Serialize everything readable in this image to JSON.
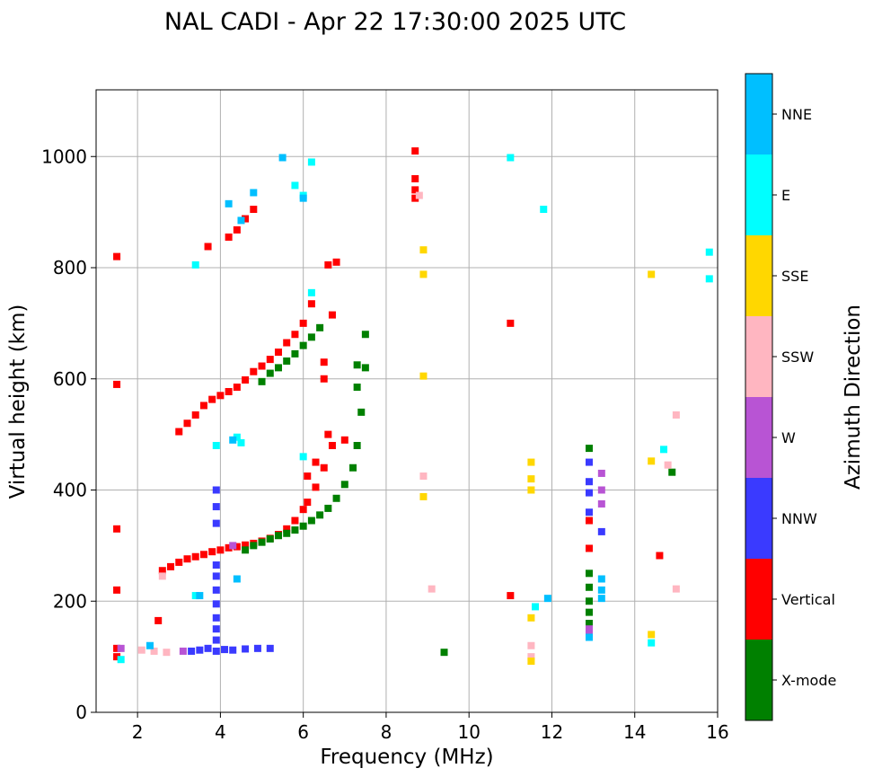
{
  "chart_data": {
    "type": "scatter",
    "title": "NAL CADI - Apr 22 17:30:00 2025 UTC",
    "xlabel": "Frequency (MHz)",
    "ylabel": "Virtual height (km)",
    "xlim": [
      1,
      16
    ],
    "ylim": [
      0,
      1120
    ],
    "xticks": [
      2,
      4,
      6,
      8,
      10,
      12,
      14,
      16
    ],
    "yticks": [
      0,
      200,
      400,
      600,
      800,
      1000
    ],
    "grid": true,
    "colorbar": {
      "label": "Azimuth Direction",
      "categories": [
        {
          "name": "X-mode",
          "color": "#008000"
        },
        {
          "name": "Vertical",
          "color": "#ff0000"
        },
        {
          "name": "NNW",
          "color": "#3a3aff"
        },
        {
          "name": "W",
          "color": "#b854d4"
        },
        {
          "name": "SSW",
          "color": "#ffb6c1"
        },
        {
          "name": "SSE",
          "color": "#ffd700"
        },
        {
          "name": "E",
          "color": "#00ffff"
        },
        {
          "name": "NNE",
          "color": "#00bfff"
        }
      ]
    },
    "series": [
      {
        "name": "Vertical",
        "points": [
          [
            2.6,
            255
          ],
          [
            2.8,
            262
          ],
          [
            3.0,
            270
          ],
          [
            3.2,
            276
          ],
          [
            3.4,
            280
          ],
          [
            3.6,
            284
          ],
          [
            3.8,
            289
          ],
          [
            4.0,
            292
          ],
          [
            4.2,
            296
          ],
          [
            4.4,
            298
          ],
          [
            4.6,
            301
          ],
          [
            4.8,
            304
          ],
          [
            5.0,
            308
          ],
          [
            5.2,
            313
          ],
          [
            5.4,
            320
          ],
          [
            5.6,
            330
          ],
          [
            5.8,
            345
          ],
          [
            6.0,
            365
          ],
          [
            6.1,
            378
          ],
          [
            6.3,
            405
          ],
          [
            6.5,
            440
          ],
          [
            3.0,
            505
          ],
          [
            3.2,
            520
          ],
          [
            3.4,
            535
          ],
          [
            3.6,
            552
          ],
          [
            3.8,
            563
          ],
          [
            4.0,
            570
          ],
          [
            4.2,
            577
          ],
          [
            4.4,
            585
          ],
          [
            4.6,
            598
          ],
          [
            4.8,
            613
          ],
          [
            5.0,
            623
          ],
          [
            5.2,
            635
          ],
          [
            5.4,
            648
          ],
          [
            5.6,
            665
          ],
          [
            5.8,
            680
          ],
          [
            6.0,
            700
          ],
          [
            6.2,
            735
          ],
          [
            4.2,
            855
          ],
          [
            4.4,
            868
          ],
          [
            4.6,
            888
          ],
          [
            4.8,
            905
          ],
          [
            6.6,
            805
          ],
          [
            6.8,
            810
          ],
          [
            1.5,
            820
          ],
          [
            1.5,
            590
          ],
          [
            1.5,
            220
          ],
          [
            1.5,
            330
          ],
          [
            1.5,
            100
          ],
          [
            1.5,
            115
          ],
          [
            2.5,
            165
          ],
          [
            6.5,
            630
          ],
          [
            6.5,
            600
          ],
          [
            6.7,
            715
          ],
          [
            6.3,
            450
          ],
          [
            6.1,
            425
          ],
          [
            6.7,
            480
          ],
          [
            6.6,
            500
          ],
          [
            7.0,
            490
          ],
          [
            8.7,
            1010
          ],
          [
            8.7,
            960
          ],
          [
            8.7,
            940
          ],
          [
            8.7,
            925
          ],
          [
            11.0,
            700
          ],
          [
            11.0,
            210
          ],
          [
            12.9,
            295
          ],
          [
            12.9,
            345
          ],
          [
            14.6,
            282
          ],
          [
            3.7,
            838
          ]
        ]
      },
      {
        "name": "X-mode",
        "points": [
          [
            4.6,
            292
          ],
          [
            4.8,
            300
          ],
          [
            5.0,
            306
          ],
          [
            5.2,
            312
          ],
          [
            5.4,
            318
          ],
          [
            5.6,
            322
          ],
          [
            5.8,
            328
          ],
          [
            6.0,
            335
          ],
          [
            6.2,
            345
          ],
          [
            6.4,
            355
          ],
          [
            6.6,
            367
          ],
          [
            6.8,
            385
          ],
          [
            7.0,
            410
          ],
          [
            7.2,
            440
          ],
          [
            7.3,
            480
          ],
          [
            7.4,
            540
          ],
          [
            7.5,
            620
          ],
          [
            7.5,
            680
          ],
          [
            5.0,
            595
          ],
          [
            5.2,
            610
          ],
          [
            5.4,
            620
          ],
          [
            5.6,
            632
          ],
          [
            5.8,
            645
          ],
          [
            6.0,
            660
          ],
          [
            6.2,
            675
          ],
          [
            6.4,
            692
          ],
          [
            7.3,
            585
          ],
          [
            7.3,
            625
          ],
          [
            12.9,
            475
          ],
          [
            12.9,
            250
          ],
          [
            12.9,
            225
          ],
          [
            12.9,
            200
          ],
          [
            12.9,
            180
          ],
          [
            12.9,
            160
          ],
          [
            14.9,
            432
          ],
          [
            9.4,
            108
          ]
        ]
      },
      {
        "name": "NNW",
        "points": [
          [
            3.9,
            110
          ],
          [
            3.9,
            130
          ],
          [
            3.9,
            150
          ],
          [
            3.9,
            170
          ],
          [
            3.9,
            195
          ],
          [
            3.9,
            220
          ],
          [
            3.9,
            245
          ],
          [
            3.9,
            265
          ],
          [
            3.9,
            340
          ],
          [
            3.9,
            370
          ],
          [
            3.9,
            400
          ],
          [
            3.3,
            110
          ],
          [
            3.5,
            112
          ],
          [
            3.7,
            115
          ],
          [
            4.1,
            113
          ],
          [
            4.3,
            112
          ],
          [
            4.6,
            114
          ],
          [
            4.9,
            115
          ],
          [
            5.2,
            115
          ],
          [
            12.9,
            450
          ],
          [
            12.9,
            415
          ],
          [
            12.9,
            395
          ],
          [
            12.9,
            360
          ],
          [
            13.2,
            325
          ]
        ]
      },
      {
        "name": "W",
        "points": [
          [
            1.6,
            115
          ],
          [
            3.1,
            110
          ],
          [
            13.2,
            430
          ],
          [
            13.2,
            400
          ],
          [
            13.2,
            375
          ],
          [
            12.9,
            150
          ],
          [
            12.9,
            140
          ],
          [
            4.3,
            300
          ]
        ]
      },
      {
        "name": "SSW",
        "points": [
          [
            2.1,
            112
          ],
          [
            2.4,
            110
          ],
          [
            2.7,
            108
          ],
          [
            2.6,
            245
          ],
          [
            8.8,
            930
          ],
          [
            8.9,
            425
          ],
          [
            9.1,
            222
          ],
          [
            14.8,
            445
          ],
          [
            15.0,
            222
          ],
          [
            15.0,
            535
          ],
          [
            11.5,
            120
          ],
          [
            11.5,
            100
          ]
        ]
      },
      {
        "name": "SSE",
        "points": [
          [
            8.9,
            832
          ],
          [
            8.9,
            788
          ],
          [
            8.9,
            605
          ],
          [
            8.9,
            388
          ],
          [
            11.5,
            450
          ],
          [
            11.5,
            420
          ],
          [
            11.5,
            400
          ],
          [
            11.5,
            170
          ],
          [
            11.5,
            92
          ],
          [
            14.4,
            452
          ],
          [
            14.4,
            788
          ],
          [
            14.4,
            140
          ]
        ]
      },
      {
        "name": "E",
        "points": [
          [
            1.6,
            95
          ],
          [
            6.2,
            755
          ],
          [
            6.2,
            990
          ],
          [
            6.0,
            930
          ],
          [
            5.8,
            948
          ],
          [
            4.5,
            485
          ],
          [
            3.9,
            480
          ],
          [
            3.4,
            805
          ],
          [
            3.4,
            210
          ],
          [
            4.4,
            495
          ],
          [
            11.8,
            905
          ],
          [
            11.0,
            998
          ],
          [
            11.6,
            190
          ],
          [
            14.4,
            125
          ],
          [
            14.7,
            473
          ],
          [
            15.8,
            828
          ],
          [
            15.8,
            780
          ],
          [
            6.0,
            460
          ]
        ]
      },
      {
        "name": "NNE",
        "points": [
          [
            4.2,
            915
          ],
          [
            4.8,
            935
          ],
          [
            5.5,
            998
          ],
          [
            6.0,
            925
          ],
          [
            4.4,
            240
          ],
          [
            3.5,
            210
          ],
          [
            11.9,
            205
          ],
          [
            13.2,
            240
          ],
          [
            13.2,
            220
          ],
          [
            13.2,
            205
          ],
          [
            12.9,
            135
          ],
          [
            4.3,
            490
          ],
          [
            2.3,
            120
          ],
          [
            4.5,
            885
          ]
        ]
      }
    ]
  }
}
